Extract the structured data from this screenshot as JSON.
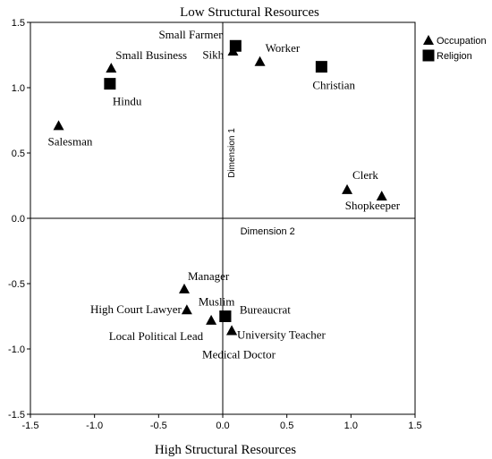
{
  "chart_data": {
    "type": "scatter",
    "title": "Low Structural Resources",
    "xlabel": "High Structural Resources",
    "ylabel": "",
    "xlim": [
      -1.5,
      1.5
    ],
    "ylim": [
      -1.5,
      1.5
    ],
    "xticks": [
      "-1.5",
      "-1.0",
      "-0.5",
      "0.0",
      "0.5",
      "1.0",
      "1.5"
    ],
    "yticks": [
      "-1.5",
      "-1.0",
      "-0.5",
      "0.0",
      "0.5",
      "1.0",
      "1.5"
    ],
    "dimension_labels": {
      "vertical_axis": "Dimension 1",
      "horizontal_axis": "Dimension 2"
    },
    "legend_position": "top-right",
    "series": [
      {
        "name": "Occupation",
        "marker": "triangle",
        "color": "#000000",
        "points": [
          {
            "label": "Small Business",
            "x": -0.87,
            "y": 1.15
          },
          {
            "label": "Salesman",
            "x": -1.28,
            "y": 0.71
          },
          {
            "label": "Small Farmer",
            "x": 0.08,
            "y": 1.28
          },
          {
            "label": "Worker",
            "x": 0.29,
            "y": 1.2
          },
          {
            "label": "Clerk",
            "x": 0.97,
            "y": 0.22
          },
          {
            "label": "Shopkeeper",
            "x": 1.24,
            "y": 0.17
          },
          {
            "label": "Manager",
            "x": -0.3,
            "y": -0.54
          },
          {
            "label": "High Court Lawyer",
            "x": -0.28,
            "y": -0.7
          },
          {
            "label": "Local Political Lead",
            "x": -0.09,
            "y": -0.78
          },
          {
            "label": "University Teacher",
            "x": 0.07,
            "y": -0.86
          },
          {
            "label": "Medical Doctor",
            "x": 0.07,
            "y": -0.86
          }
        ]
      },
      {
        "name": "Religion",
        "marker": "square",
        "color": "#000000",
        "points": [
          {
            "label": "Sikh",
            "x": 0.1,
            "y": 1.32
          },
          {
            "label": "Hindu",
            "x": -0.88,
            "y": 1.03
          },
          {
            "label": "Christian",
            "x": 0.77,
            "y": 1.16
          },
          {
            "label": "Muslim",
            "x": 0.02,
            "y": -0.75
          },
          {
            "label": "Bureaucrat",
            "x": 0.02,
            "y": -0.75
          }
        ]
      }
    ]
  }
}
